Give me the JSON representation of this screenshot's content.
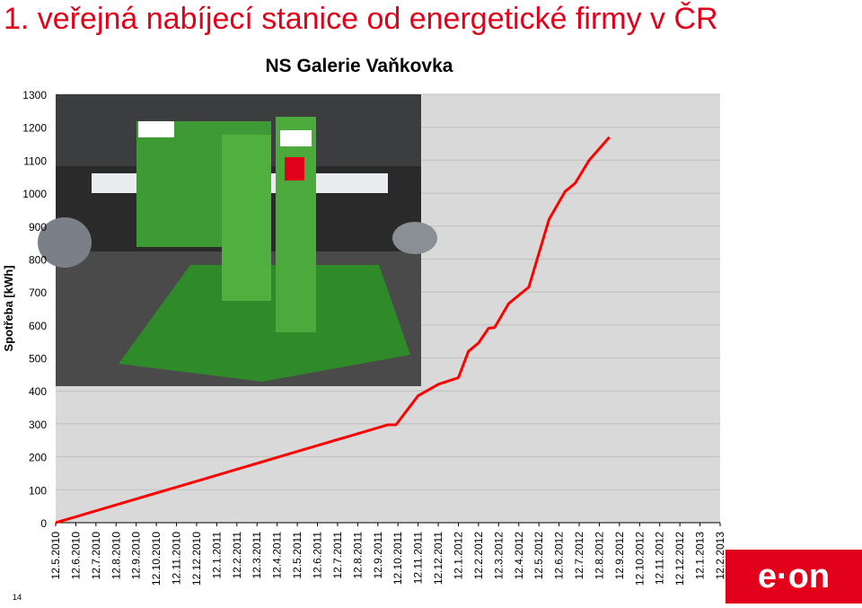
{
  "slide": {
    "title": "1. veřejná nabíjecí stanice od energetické firmy v ČR",
    "page_number": "14",
    "logo_text": "e·on"
  },
  "colors": {
    "brand_red": "#e2001a",
    "plot_background": "#d9d9d9",
    "line": "#ff0000",
    "grid": "#bfbfbf"
  },
  "chart_data": {
    "type": "line",
    "title": "NS Galerie Vaňkovka",
    "ylabel": "Spotřeba [kWh]",
    "xlabel": "",
    "ylim": [
      0,
      1300
    ],
    "yticks": [
      0,
      100,
      200,
      300,
      400,
      500,
      600,
      700,
      800,
      900,
      1000,
      1100,
      1200,
      1300
    ],
    "grid": true,
    "legend": "none",
    "inset_image": "photo of e-on charging station in parking garage with grass-covered pillars and floor",
    "categories": [
      "12.5.2010",
      "12.6.2010",
      "12.7.2010",
      "12.8.2010",
      "12.9.2010",
      "12.10.2010",
      "12.11.2010",
      "12.12.2010",
      "12.1.2011",
      "12.2.2011",
      "12.3.2011",
      "12.4.2011",
      "12.5.2011",
      "12.6.2011",
      "12.7.2011",
      "12.8.2011",
      "12.9.2011",
      "12.10.2011",
      "12.11.2011",
      "12.12.2011",
      "12.1.2012",
      "12.2.2012",
      "12.3.2012",
      "12.4.2012",
      "12.5.2012",
      "12.6.2012",
      "12.7.2012",
      "12.8.2012",
      "12.9.2012",
      "12.10.2012",
      "12.11.2012",
      "12.12.2012",
      "12.1.2013",
      "12.2.2013"
    ],
    "series": [
      {
        "points": [
          [
            0,
            0
          ],
          [
            1,
            18
          ],
          [
            2,
            36
          ],
          [
            3,
            54
          ],
          [
            4,
            72
          ],
          [
            5,
            90
          ],
          [
            6,
            108
          ],
          [
            7,
            126
          ],
          [
            8,
            144
          ],
          [
            9,
            162
          ],
          [
            10,
            180
          ],
          [
            11,
            198
          ],
          [
            12,
            216
          ],
          [
            13,
            234
          ],
          [
            14,
            252
          ],
          [
            15,
            270
          ],
          [
            16,
            288
          ],
          [
            16.5,
            297
          ],
          [
            16.9,
            297
          ],
          [
            18,
            385
          ],
          [
            19,
            420
          ],
          [
            20,
            440
          ],
          [
            20.5,
            520
          ],
          [
            21,
            545
          ],
          [
            21.5,
            590
          ],
          [
            21.8,
            592
          ],
          [
            22.5,
            665
          ],
          [
            23.5,
            715
          ],
          [
            24.5,
            920
          ],
          [
            25.3,
            1005
          ],
          [
            25.8,
            1030
          ],
          [
            26.5,
            1100
          ],
          [
            27.5,
            1170
          ]
        ]
      }
    ]
  }
}
